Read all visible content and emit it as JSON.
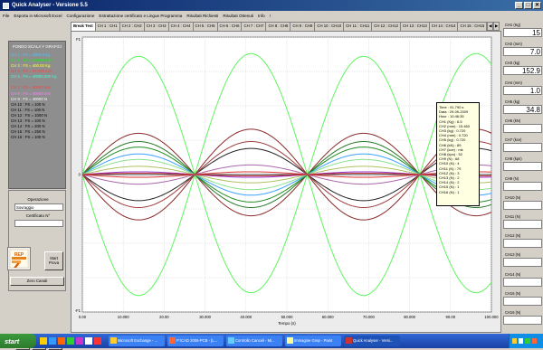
{
  "window": {
    "title": "Quick Analyser - Versione 5.5",
    "buttons": [
      "_",
      "□",
      "✕"
    ]
  },
  "menu": [
    "File",
    "Esporta in Microsoft Excel",
    "Configurazione",
    "Estrattazione certificato e Lingue Programma",
    "Risultati Richiesti",
    "Risultati Ottenuti",
    "Info",
    "!"
  ],
  "left_panel": {
    "scale_title": "FONDO SCALA Y GRAFICI",
    "channels": [
      {
        "label": "CH 1 : FS = 1000.0  Kg",
        "color": "#4fc3ff"
      },
      {
        "label": "CH 2 : FS = 30.000  mm",
        "color": "#00ff00"
      },
      {
        "label": "CH 3 : FS = 400.00  Kg",
        "color": "#ffff40"
      },
      {
        "label": "CH 4 : FS = 50.000  mm",
        "color": "#ff4040"
      },
      {
        "label": "CH 5 : FS = 40000.000  Kg",
        "color": "#40ffd0"
      },
      {
        "label": "",
        "color": "#000000"
      },
      {
        "label": "CH 7 : FS = 40000  mm",
        "color": "#ff4040"
      },
      {
        "label": "CH 8 : FS = 40000  mm",
        "color": "#ff80ff"
      },
      {
        "label": "CH 9 : FS = 40000  N",
        "color": "#ffffff"
      },
      {
        "label": "CH 10 : FS = 100  N",
        "color": "#000000"
      },
      {
        "label": "CH 11 : FS = 100  N",
        "color": "#000000"
      },
      {
        "label": "CH 12 : FS = 1000  N",
        "color": "#000000"
      },
      {
        "label": "CH 13 : FS = 100  N",
        "color": "#000000"
      },
      {
        "label": "CH 14 : FS = 200  N",
        "color": "#000000"
      },
      {
        "label": "CH 15 : FS = 250  N",
        "color": "#000000"
      },
      {
        "label": "CH 16 : FS = 100  N",
        "color": "#000000"
      }
    ],
    "operation_label": "Operazione",
    "operation_value": "Sovraggio",
    "certificate_label": "Certificato N°",
    "certificate_value": "",
    "start_label": "Start Prova",
    "zero_label": "Zero Canali",
    "rep_logo": "REP"
  },
  "tabs": [
    "Break Test",
    "CH 1 : CH1",
    "CH 2 : CH2",
    "CH 3 : CH3",
    "CH 4 : CH4",
    "CH 5 : CH5",
    "CH 6 : CH6",
    "CH 7 : CH7",
    "CH 8 : CH8",
    "CH 9 : CH9",
    "CH 10 : CH10",
    "CH 11 : CH11",
    "CH 12 : CH12",
    "CH 13 : CH13",
    "CH 14 : CH14",
    "CH 15 : CH15"
  ],
  "active_tab": 0,
  "tab_arrows": [
    "◀",
    "▶"
  ],
  "tooltip": {
    "lines": [
      "Time : 91.790 s",
      "Data : 29-09-2009",
      "Hour : 10:46:35",
      "CH1 (Kg) : 6.5",
      "CH2 (mm) : 15.460",
      "CH3 (kg) : 0.720",
      "CH4 (mm) : 0.720",
      "CH5 (kg) : 0.720",
      "CH6 (kN) : 89",
      "CH7 (kce) : mk",
      "CH8 (kpn) : 52",
      "CH9 (N) : 68",
      "CH10 (N) : 4",
      "CH11 (N) : 79",
      "CH12 (N) : 3",
      "CH13 (N) : 2",
      "CH14 (N) : 2",
      "CH15 (N) : 1",
      "CH16 (N) : 1"
    ]
  },
  "right_panel": [
    {
      "label": "CH1 (Kg)",
      "value": "15"
    },
    {
      "label": "CH2 (mm)",
      "value": "7.0"
    },
    {
      "label": "CH3 (kg)",
      "value": "152.9"
    },
    {
      "label": "CH4 (mm)",
      "value": "1.0"
    },
    {
      "label": "CH5 (kg)",
      "value": "34.8"
    },
    {
      "label": "CH6 (kN)",
      "value": ""
    },
    {
      "label": "CH7 (kce)",
      "value": ""
    },
    {
      "label": "CH8 (kpn)",
      "value": ""
    },
    {
      "label": "CH9 (N)",
      "value": ""
    },
    {
      "label": "CH10 (N)",
      "value": ""
    },
    {
      "label": "CH11 (N)",
      "value": ""
    },
    {
      "label": "CH12 (N)",
      "value": ""
    },
    {
      "label": "CH13 (N)",
      "value": ""
    },
    {
      "label": "CH14 (N)",
      "value": ""
    },
    {
      "label": "CH15 (N)",
      "value": ""
    },
    {
      "label": "CH16 (N)",
      "value": ""
    }
  ],
  "taskbar": {
    "start_label": "start",
    "windows": [
      {
        "label": "Microsoft Exchange - ...",
        "color": "#ffcc33"
      },
      {
        "label": "P:\\CAD 2006-PCB - [L...",
        "color": "#ff6633"
      },
      {
        "label": "Controllo Canceli - Mi...",
        "color": "#66ccff"
      },
      {
        "label": "Immagine Grep - Paint",
        "color": "#ffff99"
      },
      {
        "label": "Quick Analyser - Versi...",
        "color": "#cc3333",
        "active": true
      }
    ],
    "clock": ""
  },
  "chart_data": {
    "type": "line",
    "xlabel": "Tempo (s)",
    "ylabel": "",
    "xlim": [
      0,
      100
    ],
    "ylim": [
      -1,
      1
    ],
    "x_ticks": [
      "0.00",
      "10.000",
      "20.00",
      "30.000",
      "40.000",
      "50.000",
      "60.000",
      "70.000",
      "80.000",
      "90.00",
      "100.000"
    ],
    "y_tick_top": "F1",
    "y_tick_bottom": "-F1",
    "y_tick_mid": "0",
    "grid": true,
    "period": 55,
    "x_start": 0,
    "x_end": 100,
    "zero_line": true,
    "series": [
      {
        "amplitude": 0.86,
        "color": "#5ef55e"
      },
      {
        "amplitude": -0.88,
        "color": "#5ef55e"
      },
      {
        "amplitude": 0.3,
        "color": "#8b2a2a"
      },
      {
        "amplitude": -0.33,
        "color": "#8b2a2a"
      },
      {
        "amplitude": 0.24,
        "color": "#2a7a2a"
      },
      {
        "amplitude": -0.19,
        "color": "#222222"
      },
      {
        "amplitude": 0.2,
        "color": "#228b22"
      },
      {
        "amplitude": -0.24,
        "color": "#a04040"
      },
      {
        "amplitude": 0.15,
        "color": "#3aa0ff"
      },
      {
        "amplitude": 0.11,
        "color": "#8ae08a"
      },
      {
        "amplitude": -0.07,
        "color": "#aa66aa"
      },
      {
        "amplitude": 0.06,
        "color": "#b0c060"
      },
      {
        "amplitude": 0.02,
        "color": "#9933cc"
      },
      {
        "amplitude": -0.02,
        "color": "#dd3333"
      },
      {
        "amplitude": 0.01,
        "color": "#c03030"
      }
    ]
  }
}
